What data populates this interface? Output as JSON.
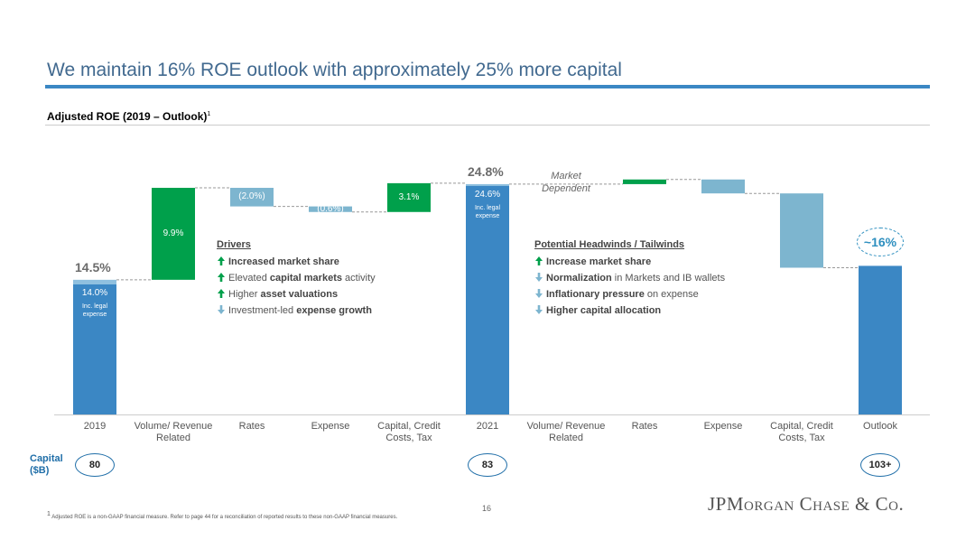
{
  "header": {
    "title": "We maintain 16% ROE outlook with approximately 25% more capital"
  },
  "chart_data": {
    "type": "waterfall",
    "title": "Adjusted ROE (2019 – Outlook)",
    "title_note": "1",
    "categories": [
      "2019",
      "Volume/ Revenue Related",
      "Rates",
      "Expense",
      "Capital, Credit Costs, Tax",
      "2021",
      "Volume/ Revenue Related",
      "Rates",
      "Expense",
      "Capital, Credit Costs, Tax",
      "Outlook"
    ],
    "kinds": [
      "total",
      "change",
      "change",
      "change",
      "change",
      "total",
      "change",
      "change",
      "change",
      "change",
      "total"
    ],
    "values": [
      14.5,
      9.9,
      -2.0,
      -0.6,
      3.1,
      24.8,
      null,
      0.5,
      -1.5,
      -8.0,
      16
    ],
    "value_labels": [
      "14.5%",
      "9.9%",
      "(2.0%)",
      "(0.6%)",
      "3.1%",
      "24.8%",
      null,
      null,
      null,
      null,
      "~16%"
    ],
    "inner_values": [
      14.0,
      null,
      null,
      null,
      null,
      24.6,
      null,
      null,
      null,
      null,
      null
    ],
    "inner_value_labels": [
      "14.0%",
      null,
      null,
      null,
      null,
      "24.6%",
      null,
      null,
      null,
      null,
      null
    ],
    "inner_note": "Inc. legal expense",
    "annotation": {
      "text": "Market Dependent",
      "category": 6
    },
    "colors": {
      "total": "#3b87c4",
      "total_top": "#8fc0df",
      "increase": "#00a04b",
      "decrease": "#7db5cf"
    },
    "ylim": [
      0,
      28
    ]
  },
  "drivers": {
    "title": "Drivers",
    "items": [
      {
        "direction": "up",
        "parts": [
          {
            "text": "Increased market share",
            "bold": true
          }
        ]
      },
      {
        "direction": "up",
        "parts": [
          {
            "text": "Elevated ",
            "bold": false
          },
          {
            "text": "capital markets",
            "bold": true
          },
          {
            "text": " activity",
            "bold": false
          }
        ]
      },
      {
        "direction": "up",
        "parts": [
          {
            "text": "Higher ",
            "bold": false
          },
          {
            "text": "asset valuations",
            "bold": true
          }
        ]
      },
      {
        "direction": "down",
        "parts": [
          {
            "text": "Investment-led ",
            "bold": false
          },
          {
            "text": "expense growth",
            "bold": true
          }
        ]
      }
    ]
  },
  "headwinds": {
    "title": "Potential Headwinds / Tailwinds",
    "items": [
      {
        "direction": "up",
        "parts": [
          {
            "text": "Increase market share",
            "bold": true
          }
        ]
      },
      {
        "direction": "down",
        "parts": [
          {
            "text": "Normalization",
            "bold": true
          },
          {
            "text": " in Markets and IB wallets",
            "bold": false
          }
        ]
      },
      {
        "direction": "down",
        "parts": [
          {
            "text": "Inflationary pressure",
            "bold": true
          },
          {
            "text": " on expense",
            "bold": false
          }
        ]
      },
      {
        "direction": "down",
        "parts": [
          {
            "text": "Higher capital allocation",
            "bold": true
          }
        ]
      }
    ]
  },
  "capital": {
    "label": "Capital ($B)",
    "values": [
      80,
      null,
      null,
      null,
      null,
      83,
      null,
      null,
      null,
      null,
      103
    ],
    "value_labels": [
      null,
      null,
      null,
      null,
      null,
      null,
      null,
      null,
      null,
      null,
      "103+"
    ]
  },
  "footer": {
    "footnote_mark": "1",
    "footnote": "Adjusted ROE is a non-GAAP financial measure. Refer to page 44 for a reconciliation of reported results to these non-GAAP financial measures.",
    "page_number": "16",
    "logo": "JPMorgan Chase & Co."
  }
}
